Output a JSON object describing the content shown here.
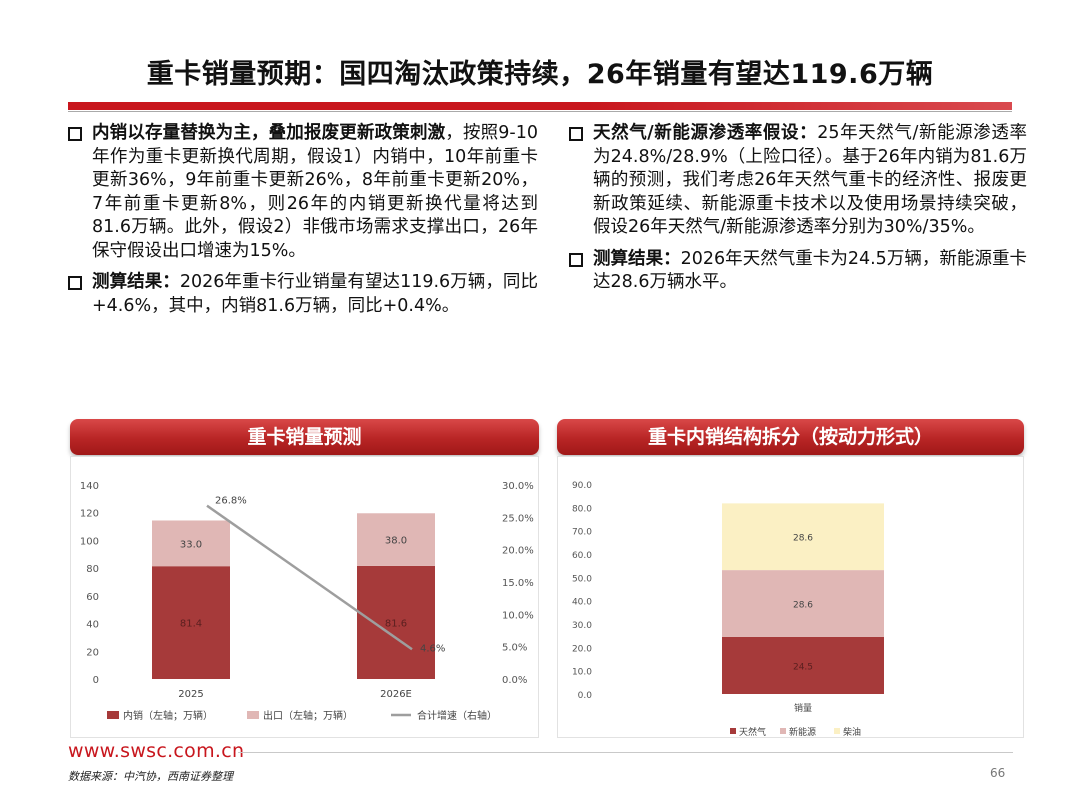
{
  "title": "重卡销量预期：国四淘汰政策持续，26年销量有望达119.6万辆",
  "left_bullets": [
    {
      "lead": "内销以存量替换为主，叠加报废更新政策刺激",
      "body": "，按照9-10年作为重卡更新换代周期，假设1）内销中，10年前重卡更新36%，9年前重卡更新26%，8年前重卡更新20%，7年前重卡更新8%，则26年的内销更新换代量将达到81.6万辆。此外，假设2）非俄市场需求支撑出口，26年保守假设出口增速为15%。"
    },
    {
      "lead": "测算结果：",
      "body": "2026年重卡行业销量有望达119.6万辆，同比+4.6%，其中，内销81.6万辆，同比+0.4%。"
    }
  ],
  "right_bullets": [
    {
      "lead": "天然气/新能源渗透率假设：",
      "body": "25年天然气/新能源渗透率为24.8%/28.9%（上险口径）。基于26年内销为81.6万辆的预测，我们考虑26年天然气重卡的经济性、报废更新政策延续、新能源重卡技术以及使用场景持续突破，假设26年天然气/新能源渗透率分别为30%/35%。"
    },
    {
      "lead": "测算结果：",
      "body": "2026年天然气重卡为24.5万辆，新能源重卡达28.6万辆水平。"
    }
  ],
  "panel_left_title": "重卡销量预测",
  "panel_right_title": "重卡内销结构拆分（按动力形式）",
  "footer": {
    "url": "www.swsc.com.cn",
    "source": "数据来源：中汽协，西南证券整理",
    "page": "66"
  },
  "colors": {
    "accent": "#c8161d",
    "domestic": "#a63a3a",
    "export": "#e0b7b5",
    "growth_line": "#9e9e9e",
    "gas": "#a63a3a",
    "nev": "#e0b7b5",
    "diesel": "#fbf0c4"
  },
  "chart_data": [
    {
      "type": "bar",
      "stacked": true,
      "title": "重卡销量预测",
      "categories": [
        "2025",
        "2026E"
      ],
      "series": [
        {
          "name": "内销（左轴；万辆）",
          "axis": "left",
          "values": [
            81.4,
            81.6
          ]
        },
        {
          "name": "出口（左轴；万辆）",
          "axis": "left",
          "values": [
            33.0,
            38.0
          ]
        },
        {
          "name": "合计增速（右轴）",
          "axis": "right",
          "type": "line",
          "values": [
            26.8,
            4.6
          ],
          "labels": [
            "26.8%",
            "4.6%"
          ]
        }
      ],
      "ylim": [
        0,
        140
      ],
      "yticks": [
        "0",
        "20",
        "40",
        "60",
        "80",
        "100",
        "120",
        "140"
      ],
      "y2lim": [
        0,
        30
      ],
      "y2ticks": [
        "0.0%",
        "5.0%",
        "10.0%",
        "15.0%",
        "20.0%",
        "25.0%",
        "30.0%"
      ],
      "legend_position": "bottom"
    },
    {
      "type": "bar",
      "stacked": true,
      "title": "重卡内销结构拆分（按动力形式）",
      "categories": [
        "销量"
      ],
      "series": [
        {
          "name": "天然气",
          "values": [
            24.5
          ]
        },
        {
          "name": "新能源",
          "values": [
            28.6
          ]
        },
        {
          "name": "柴油",
          "values": [
            28.6
          ]
        }
      ],
      "ylim": [
        0,
        90
      ],
      "yticks": [
        "0.0",
        "10.0",
        "20.0",
        "30.0",
        "40.0",
        "50.0",
        "60.0",
        "70.0",
        "80.0",
        "90.0"
      ],
      "legend_position": "bottom"
    }
  ]
}
